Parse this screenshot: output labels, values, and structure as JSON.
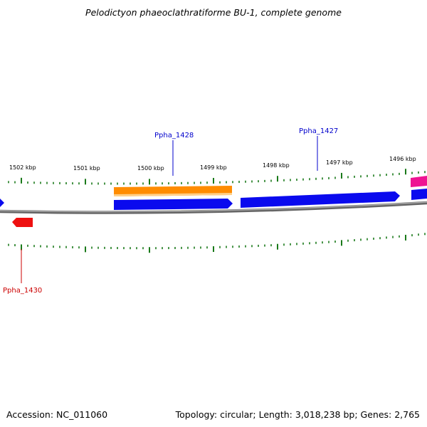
{
  "title": "Pelodictyon phaeoclathratiforme BU-1, complete genome",
  "footer": {
    "accession": "Accession: NC_011060",
    "summary": "Topology: circular; Length: 3,018,238 bp; Genes: 2,765"
  },
  "colors": {
    "forward_cds": "#0a0aee",
    "reverse_cds": "#ee1010",
    "orange_feature": "#ff8c00",
    "pink_feature": "#ee1493",
    "ticks": "#1a7a1a",
    "backbone": "#888888",
    "forward_label": "#0000cc",
    "reverse_label": "#cc0000"
  },
  "axis_labels": [
    "1502 kbp",
    "1501 kbp",
    "1500 kbp",
    "1499 kbp",
    "1498 kbp",
    "1497 kbp",
    "1496 kbp"
  ],
  "gene_labels": [
    {
      "text": "Ppha_1428",
      "strand": "forward"
    },
    {
      "text": "Ppha_1427",
      "strand": "forward"
    },
    {
      "text": "Ppha_1430",
      "strand": "reverse"
    }
  ]
}
